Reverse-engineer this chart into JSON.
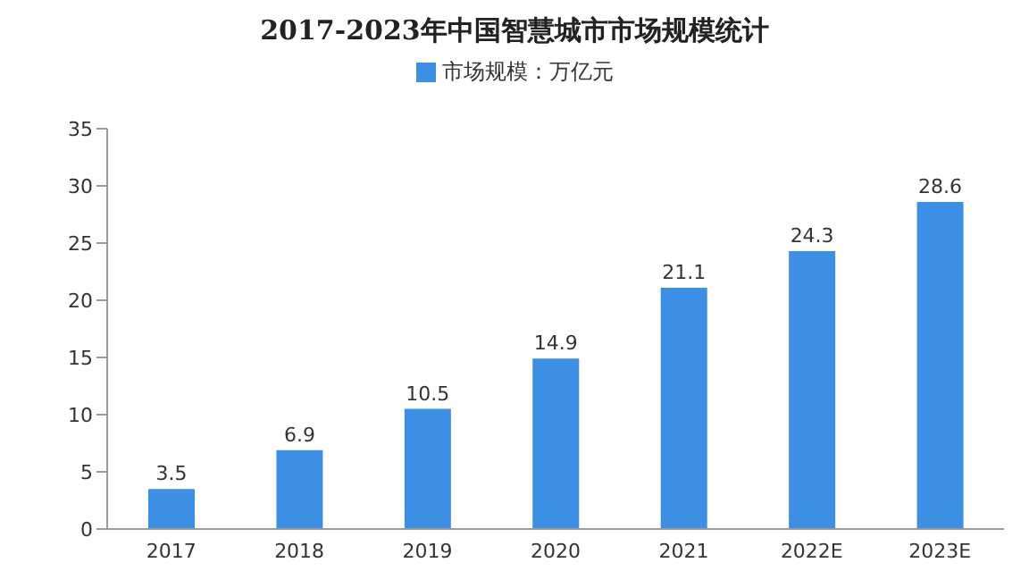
{
  "chart_data": {
    "type": "bar",
    "title": "2017-2023年中国智慧城市市场规模统计",
    "categories": [
      "2017",
      "2018",
      "2019",
      "2020",
      "2021",
      "2022E",
      "2023E"
    ],
    "series": [
      {
        "name": "市场规模：万亿元",
        "color": "#3c8fe3",
        "values": [
          3.5,
          6.9,
          10.5,
          14.9,
          21.1,
          24.3,
          28.6
        ]
      }
    ],
    "ylim": [
      0,
      35
    ],
    "yticks": [
      0,
      5,
      10,
      15,
      20,
      25,
      30,
      35
    ],
    "grid": false,
    "legend": "top",
    "data_labels": true
  }
}
